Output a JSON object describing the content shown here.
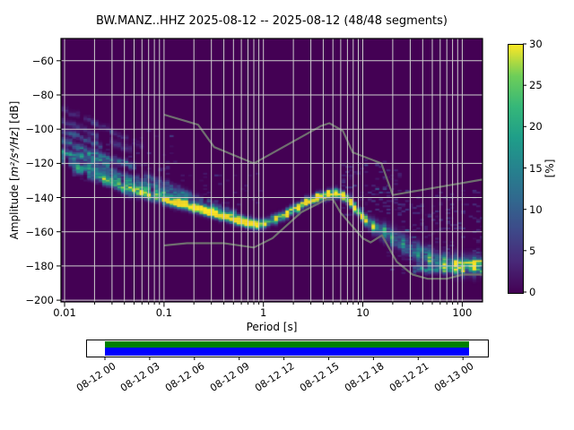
{
  "title": "BW.MANZ..HHZ   2025-08-12 -- 2025-08-12  (48/48 segments)",
  "chart_data": {
    "type": "heatmap",
    "title": "BW.MANZ..HHZ   2025-08-12 -- 2025-08-12  (48/48 segments)",
    "xlabel": "Period [s]",
    "ylabel_prefix": "Amplitude [",
    "ylabel_math": "m²/s⁴/Hz",
    "ylabel_suffix": "] [dB]",
    "xscale": "log",
    "xlim": [
      0.0092,
      160
    ],
    "ylim": [
      -201,
      -47
    ],
    "xticks": [
      {
        "value": 0.01,
        "label": "0.01"
      },
      {
        "value": 0.1,
        "label": "0.1"
      },
      {
        "value": 1,
        "label": "1"
      },
      {
        "value": 10,
        "label": "10"
      },
      {
        "value": 100,
        "label": "100"
      }
    ],
    "yticks": [
      {
        "value": -60,
        "label": "−60"
      },
      {
        "value": -80,
        "label": "−80"
      },
      {
        "value": -100,
        "label": "−100"
      },
      {
        "value": -120,
        "label": "−120"
      },
      {
        "value": -140,
        "label": "−140"
      },
      {
        "value": -160,
        "label": "−160"
      },
      {
        "value": -180,
        "label": "−180"
      },
      {
        "value": -200,
        "label": "−200"
      }
    ],
    "grid": true,
    "background_color": "#440154",
    "grid_color": "#cdcdcd",
    "noise_model_color": "#6f6f6f",
    "colorbar": {
      "label": "[%]",
      "min": 0,
      "max": 30,
      "ticks": [
        {
          "value": 0,
          "label": "0"
        },
        {
          "value": 5,
          "label": "5"
        },
        {
          "value": 10,
          "label": "10"
        },
        {
          "value": 15,
          "label": "15"
        },
        {
          "value": 20,
          "label": "20"
        },
        {
          "value": 25,
          "label": "25"
        },
        {
          "value": 30,
          "label": "30"
        }
      ],
      "colormap": "viridis",
      "colormap_stops": [
        [
          0,
          "#440154"
        ],
        [
          0.125,
          "#482878"
        ],
        [
          0.25,
          "#3e4989"
        ],
        [
          0.375,
          "#31688e"
        ],
        [
          0.5,
          "#26828e"
        ],
        [
          0.625,
          "#1f9e89"
        ],
        [
          0.75,
          "#35b779"
        ],
        [
          0.875,
          "#6ece58"
        ],
        [
          1,
          "#fde725"
        ]
      ]
    },
    "noise_models": {
      "nhnm": [
        [
          0.1,
          -91.5
        ],
        [
          0.22,
          -97.4
        ],
        [
          0.32,
          -110.5
        ],
        [
          0.8,
          -120.0
        ],
        [
          3.8,
          -98.1
        ],
        [
          4.6,
          -96.5
        ],
        [
          6.3,
          -101.0
        ],
        [
          7.9,
          -113.5
        ],
        [
          15.4,
          -120.0
        ],
        [
          20,
          -138.5
        ],
        [
          354.8,
          -126.0
        ]
      ],
      "nlnm": [
        [
          0.1,
          -168.0
        ],
        [
          0.17,
          -166.7
        ],
        [
          0.4,
          -166.7
        ],
        [
          0.8,
          -169.2
        ],
        [
          1.24,
          -163.7
        ],
        [
          2.4,
          -148.6
        ],
        [
          4.3,
          -141.1
        ],
        [
          5,
          -141.1
        ],
        [
          6,
          -149.0
        ],
        [
          10,
          -163.8
        ],
        [
          12,
          -166.2
        ],
        [
          15.6,
          -162.1
        ],
        [
          21.9,
          -177.5
        ],
        [
          31.6,
          -185.0
        ],
        [
          45,
          -187.5
        ],
        [
          70,
          -187.5
        ],
        [
          101,
          -185.0
        ],
        [
          154,
          -185.0
        ],
        [
          328,
          -187.5
        ]
      ]
    },
    "mode_curve": [
      [
        0.5,
        -152.5,
        13
      ],
      [
        0.65,
        -154.5,
        15
      ],
      [
        0.85,
        -155.5,
        17
      ],
      [
        1.05,
        -154.5,
        20
      ],
      [
        1.3,
        -152.5,
        23
      ],
      [
        1.7,
        -149.5,
        25
      ],
      [
        2.2,
        -146,
        27
      ],
      [
        2.8,
        -142.5,
        29
      ],
      [
        3.6,
        -139.5,
        30
      ],
      [
        4.5,
        -137.8,
        30
      ],
      [
        5.5,
        -137.5,
        30
      ],
      [
        6.5,
        -139.5,
        29
      ],
      [
        7.5,
        -142.5,
        27
      ],
      [
        8.5,
        -146.5,
        24
      ],
      [
        9.7,
        -150.5,
        19
      ],
      [
        11,
        -154,
        16
      ],
      [
        13,
        -157,
        14
      ],
      [
        16,
        -160,
        12
      ],
      [
        20,
        -163.5,
        10
      ],
      [
        26,
        -167.5,
        9
      ],
      [
        35,
        -172,
        10
      ],
      [
        48,
        -175.5,
        11
      ],
      [
        65,
        -177.8,
        12
      ],
      [
        85,
        -179.3,
        13
      ],
      [
        105,
        -180,
        14
      ],
      [
        130,
        -179.6,
        13
      ],
      [
        160,
        -178.8,
        12
      ]
    ],
    "extra_bands": [
      {
        "from": [
          32,
          -182.0
        ],
        "to": [
          160,
          -182.3
        ],
        "peak_percent": 12,
        "sigma": 1.3
      },
      {
        "from": [
          88,
          -178.2
        ],
        "to": [
          160,
          -177.8
        ],
        "peak_percent": 21,
        "sigma": 0.9
      }
    ],
    "streaks": [
      {
        "from": [
          0.0095,
          -88
        ],
        "to": [
          0.03,
          -101
        ],
        "peak_percent": 4,
        "sigma": 1.2
      },
      {
        "from": [
          0.0095,
          -95
        ],
        "to": [
          0.05,
          -113
        ],
        "peak_percent": 5,
        "sigma": 1.4
      },
      {
        "from": [
          0.02,
          -96
        ],
        "to": [
          0.06,
          -110
        ],
        "peak_percent": 3,
        "sigma": 1.2
      },
      {
        "from": [
          0.0095,
          -101
        ],
        "to": [
          0.022,
          -109
        ],
        "peak_percent": 8,
        "sigma": 1.2
      },
      {
        "from": [
          0.0095,
          -107
        ],
        "to": [
          0.05,
          -122
        ],
        "peak_percent": 11,
        "sigma": 1.4
      },
      {
        "from": [
          0.0095,
          -113
        ],
        "to": [
          0.028,
          -120
        ],
        "peak_percent": 14,
        "sigma": 1.4
      },
      {
        "from": [
          0.0095,
          -118
        ],
        "to": [
          0.8,
          -155.5
        ],
        "peak_percent": 13,
        "sigma": 1.8
      },
      {
        "from": [
          0.013,
          -124
        ],
        "to": [
          0.35,
          -150
        ],
        "peak_percent": 12,
        "sigma": 1.6
      },
      {
        "from": [
          0.018,
          -120
        ],
        "to": [
          0.18,
          -140
        ],
        "peak_percent": 8,
        "sigma": 1.4
      },
      {
        "from": [
          0.022,
          -130
        ],
        "to": [
          0.6,
          -154
        ],
        "peak_percent": 11,
        "sigma": 1.6
      },
      {
        "from": [
          0.04,
          -136
        ],
        "to": [
          0.9,
          -156.5
        ],
        "peak_percent": 10,
        "sigma": 1.6
      },
      {
        "from": [
          0.065,
          -127
        ],
        "to": [
          0.5,
          -149
        ],
        "peak_percent": 7,
        "sigma": 1.4
      },
      {
        "from": [
          0.11,
          -142
        ],
        "to": [
          0.95,
          -157
        ],
        "peak_percent": 9,
        "sigma": 1.5
      }
    ],
    "scatter_regions": [
      {
        "p": [
          6,
          25
        ],
        "db": [
          -118,
          -150
        ],
        "count": 120,
        "i": [
          1,
          5
        ]
      },
      {
        "p": [
          25,
          160
        ],
        "db": [
          -135,
          -172
        ],
        "count": 140,
        "i": [
          1,
          5
        ]
      },
      {
        "p": [
          18,
          60
        ],
        "db": [
          -168,
          -184
        ],
        "count": 50,
        "i": [
          1,
          4
        ]
      },
      {
        "p": [
          0.15,
          1.0
        ],
        "db": [
          -126,
          -146
        ],
        "count": 40,
        "i": [
          1,
          3
        ]
      },
      {
        "p": [
          0.012,
          0.15
        ],
        "db": [
          -100,
          -135
        ],
        "count": 60,
        "i": [
          1,
          4
        ]
      }
    ]
  },
  "timeline": {
    "labels": [
      "08-12 00",
      "08-12 03",
      "08-12 06",
      "08-12 09",
      "08-12 12",
      "08-12 15",
      "08-12 18",
      "08-12 21",
      "08-13 00"
    ],
    "coverage_color": "#008000",
    "data_color": "#0000ff"
  }
}
